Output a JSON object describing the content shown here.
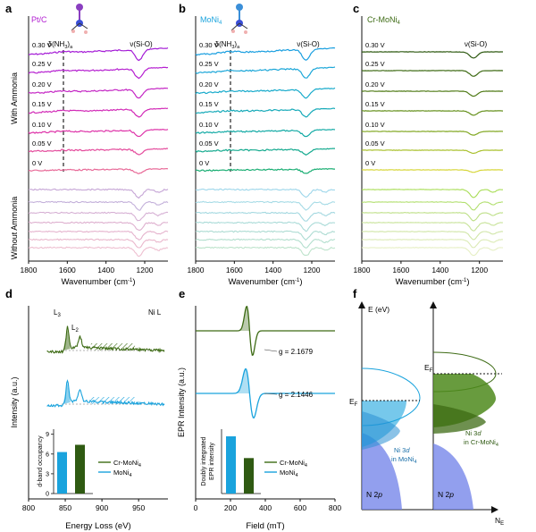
{
  "colors": {
    "pt": "#b21fd1",
    "moni4": "#1aa3dd",
    "cr": "#3d6b14",
    "axis": "#111111",
    "dash": "#222222"
  },
  "panels": {
    "a": {
      "letter": "a",
      "title": "Pt/C"
    },
    "b": {
      "letter": "b",
      "title": "MoNi4"
    },
    "c": {
      "letter": "c",
      "title": "Cr-MoNi4"
    },
    "d": {
      "letter": "d",
      "title": "Ni L"
    },
    "e": {
      "letter": "e"
    },
    "f": {
      "letter": "f"
    }
  },
  "row_labels": {
    "with": "With Ammonia",
    "without": "Without Ammonia"
  },
  "chart_data": [
    {
      "id": "a",
      "type": "line",
      "title": "Pt/C",
      "xlabel": "Wavenumber (cm-1)",
      "xlim": [
        1800,
        1080
      ],
      "x_ticks": [
        1800,
        1600,
        1400,
        1200
      ],
      "series_labels": [
        "0.30 V",
        "0.25 V",
        "0.20 V",
        "0.15 V",
        "0.10 V",
        "0.05 V",
        "0 V"
      ],
      "with_colors": [
        "#a41bd6",
        "#b51fd0",
        "#c425c4",
        "#d22bb7",
        "#de34a9",
        "#e44b9c",
        "#e86a98"
      ],
      "without_colors": [
        "#c6a6d6",
        "#c3b0da",
        "#d6b0d4",
        "#deb0cf",
        "#e5b3cd",
        "#eab7cc",
        "#eebfd0"
      ],
      "peaks": [
        {
          "wavenumber": 1620,
          "label": "δ(NH3)a"
        },
        {
          "wavenumber": 1230,
          "label": "ν(Si-O)"
        }
      ]
    },
    {
      "id": "b",
      "type": "line",
      "title": "MoNi4",
      "xlabel": "Wavenumber (cm-1)",
      "xlim": [
        1800,
        1080
      ],
      "x_ticks": [
        1800,
        1600,
        1400,
        1200
      ],
      "series_labels": [
        "0.30 V",
        "0.25 V",
        "0.20 V",
        "0.15 V",
        "0.10 V",
        "0.05 V",
        "0 V"
      ],
      "with_colors": [
        "#1a9fe0",
        "#1aa6d8",
        "#17aacb",
        "#14a9b8",
        "#13aaa5",
        "#15aa8f",
        "#18ad72"
      ],
      "without_colors": [
        "#9dd6ea",
        "#a6dbe6",
        "#a3d8e0",
        "#aadbd8",
        "#aedcd3",
        "#b3dfce",
        "#bde3cb"
      ],
      "peaks": [
        {
          "wavenumber": 1620,
          "label": "δ(NH3)a"
        },
        {
          "wavenumber": 1230,
          "label": "ν(Si-O)"
        }
      ]
    },
    {
      "id": "c",
      "type": "line",
      "title": "Cr-MoNi4",
      "xlabel": "Wavenumber (cm-1)",
      "xlim": [
        1800,
        1080
      ],
      "x_ticks": [
        1800,
        1600,
        1400,
        1200
      ],
      "series_labels": [
        "0.30 V",
        "0.25 V",
        "0.20 V",
        "0.15 V",
        "0.10 V",
        "0.05 V",
        "0 V"
      ],
      "with_colors": [
        "#2f5a12",
        "#3f6b15",
        "#507b17",
        "#65901c",
        "#82a823",
        "#a9c02c",
        "#d7d63a"
      ],
      "without_colors": [
        "#a8dd55",
        "#b1df6e",
        "#bddf86",
        "#c8e39a",
        "#d1e6a8",
        "#dcebb6",
        "#e6efc4"
      ],
      "peaks": [
        {
          "wavenumber": 1230,
          "label": "ν(Si-O)"
        }
      ]
    },
    {
      "id": "d",
      "type": "line",
      "title": "Ni L",
      "xlabel": "Energy Loss (eV)",
      "ylabel": "Intensity (a.u.)",
      "xlim": [
        800,
        990
      ],
      "x_ticks": [
        800,
        850,
        900,
        950
      ],
      "peaks": [
        {
          "energy": 853,
          "label": "L3"
        },
        {
          "energy": 870,
          "label": "L2"
        }
      ],
      "legend": [
        "Cr-MoNi4",
        "MoNi4"
      ],
      "inset": {
        "type": "bar",
        "ylabel": "d-band occupancy",
        "ylim": [
          0,
          9.5
        ],
        "y_ticks": [
          0,
          3,
          6,
          9
        ],
        "categories": [
          "MoNi4",
          "Cr-MoNi4"
        ],
        "values": [
          6.3,
          7.4
        ]
      }
    },
    {
      "id": "e",
      "type": "line",
      "xlabel": "Field (mT)",
      "ylabel": "EPR Intensity (a.u.)",
      "xlim": [
        0,
        800
      ],
      "x_ticks": [
        0,
        200,
        400,
        600,
        800
      ],
      "annotations": [
        "g = 2.1679",
        "g = 2.1446"
      ],
      "legend": [
        "Cr-MoNi4",
        "MoNi4"
      ],
      "inset": {
        "type": "bar",
        "ylabel": "Doubly integrated EPR intensity",
        "categories": [
          "MoNi4",
          "Cr-MoNi4"
        ],
        "values": [
          1.0,
          0.62
        ]
      }
    },
    {
      "id": "f",
      "type": "diagram",
      "ylabel": "E (eV)",
      "xlabel": "NE",
      "labels": {
        "n2p": "N 2p",
        "moni4": "Ni 3d in MoNi4",
        "cr": "Ni 3d in Cr-MoNi4",
        "ef": "EF"
      }
    }
  ]
}
